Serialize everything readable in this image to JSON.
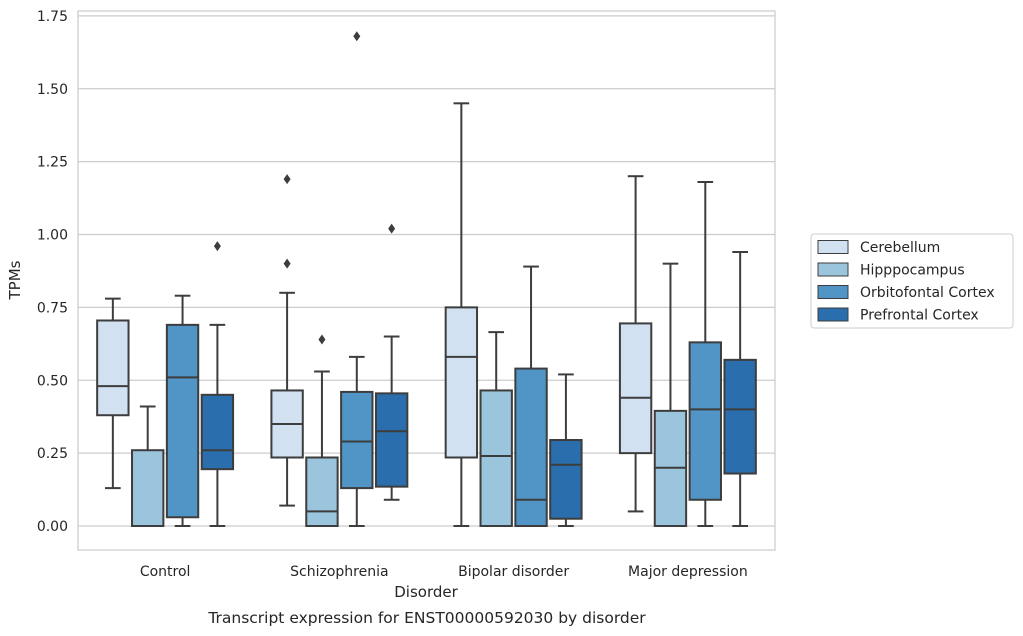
{
  "chart_data": {
    "type": "box",
    "caption": "Transcript expression for ENST00000592030 by disorder",
    "xlabel": "Disorder",
    "ylabel": "TPMs",
    "ylim": [
      -0.08,
      1.76
    ],
    "yticks": [
      0.0,
      0.25,
      0.5,
      0.75,
      1.0,
      1.25,
      1.5,
      1.75
    ],
    "ytick_labels": [
      "0.00",
      "0.25",
      "0.50",
      "0.75",
      "1.00",
      "1.25",
      "1.50",
      "1.75"
    ],
    "grid": "horizontal",
    "legend_position": "right",
    "categories": [
      "Control",
      "Schizophrenia",
      "Bipolar disorder",
      "Major depression"
    ],
    "series": [
      {
        "name": "Cerebellum",
        "color": "#d1e1f1",
        "boxes": [
          {
            "whislo": 0.13,
            "q1": 0.38,
            "med": 0.48,
            "q3": 0.705,
            "whishi": 0.78,
            "fliers": []
          },
          {
            "whislo": 0.07,
            "q1": 0.235,
            "med": 0.35,
            "q3": 0.465,
            "whishi": 0.8,
            "fliers": [
              0.9,
              1.19
            ]
          },
          {
            "whislo": 0.0,
            "q1": 0.235,
            "med": 0.58,
            "q3": 0.75,
            "whishi": 1.45,
            "fliers": []
          },
          {
            "whislo": 0.05,
            "q1": 0.25,
            "med": 0.44,
            "q3": 0.695,
            "whishi": 1.2,
            "fliers": []
          }
        ]
      },
      {
        "name": "Hipppocampus",
        "color": "#9ac5dc",
        "boxes": [
          {
            "whislo": 0.0,
            "q1": 0.0,
            "med": 0.0,
            "q3": 0.26,
            "whishi": 0.41,
            "fliers": []
          },
          {
            "whislo": 0.0,
            "q1": 0.0,
            "med": 0.05,
            "q3": 0.235,
            "whishi": 0.53,
            "fliers": [
              0.64
            ]
          },
          {
            "whislo": 0.0,
            "q1": 0.0,
            "med": 0.24,
            "q3": 0.465,
            "whishi": 0.665,
            "fliers": []
          },
          {
            "whislo": 0.0,
            "q1": 0.0,
            "med": 0.2,
            "q3": 0.395,
            "whishi": 0.9,
            "fliers": []
          }
        ]
      },
      {
        "name": "Orbitofontal Cortex",
        "color": "#5095c6",
        "boxes": [
          {
            "whislo": 0.0,
            "q1": 0.03,
            "med": 0.51,
            "q3": 0.69,
            "whishi": 0.79,
            "fliers": []
          },
          {
            "whislo": 0.0,
            "q1": 0.13,
            "med": 0.29,
            "q3": 0.46,
            "whishi": 0.58,
            "fliers": [
              1.68
            ]
          },
          {
            "whislo": 0.0,
            "q1": 0.0,
            "med": 0.09,
            "q3": 0.54,
            "whishi": 0.89,
            "fliers": []
          },
          {
            "whislo": 0.0,
            "q1": 0.09,
            "med": 0.4,
            "q3": 0.63,
            "whishi": 1.18,
            "fliers": []
          }
        ]
      },
      {
        "name": "Prefrontal Cortex",
        "color": "#2b6ead",
        "boxes": [
          {
            "whislo": 0.0,
            "q1": 0.195,
            "med": 0.26,
            "q3": 0.45,
            "whishi": 0.69,
            "fliers": [
              0.96
            ]
          },
          {
            "whislo": 0.09,
            "q1": 0.135,
            "med": 0.325,
            "q3": 0.455,
            "whishi": 0.65,
            "fliers": [
              1.02
            ]
          },
          {
            "whislo": 0.0,
            "q1": 0.025,
            "med": 0.21,
            "q3": 0.295,
            "whishi": 0.52,
            "fliers": []
          },
          {
            "whislo": 0.0,
            "q1": 0.18,
            "med": 0.4,
            "q3": 0.57,
            "whishi": 0.94,
            "fliers": []
          }
        ]
      }
    ]
  }
}
